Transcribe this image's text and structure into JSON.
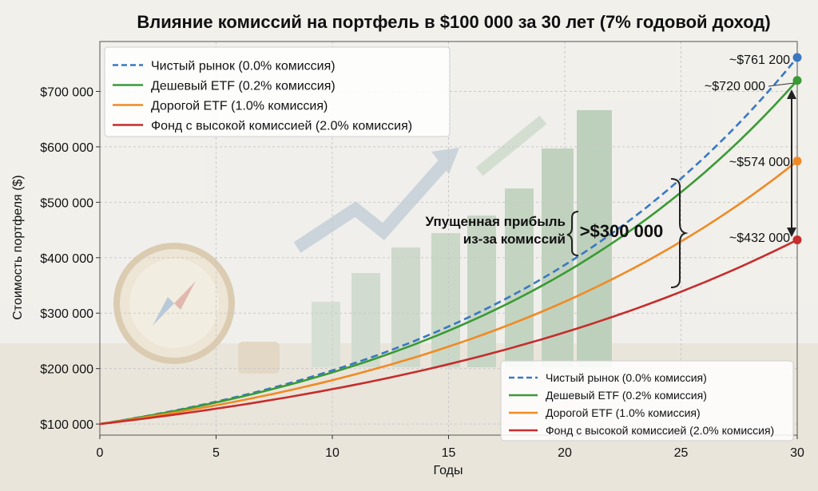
{
  "chart_data": {
    "type": "line",
    "title": "Влияние комиссий на портфель в $100 000 за 30 лет (7% годовой доход)",
    "xlabel": "Годы",
    "ylabel": "Стоимость портфеля ($)",
    "xlim": [
      0,
      30
    ],
    "ylim": [
      80000,
      790000
    ],
    "x_ticks": [
      0,
      5,
      10,
      15,
      20,
      25,
      30
    ],
    "y_ticks": [
      100000,
      200000,
      300000,
      400000,
      500000,
      600000,
      700000
    ],
    "y_tick_labels": [
      "$100 000",
      "$200 000",
      "$300 000",
      "$400 000",
      "$500 000",
      "$600 000",
      "$700 000"
    ],
    "grid": true,
    "legend_placement": [
      "top-left",
      "bottom-right"
    ],
    "series": [
      {
        "name": "Чистый рынок (0.0% комиссия)",
        "color": "#3a78c2",
        "dash": true,
        "rate": 0.07,
        "x": [
          0,
          5,
          10,
          15,
          20,
          25,
          30
        ],
        "values": [
          100000,
          140255,
          196715,
          275903,
          386968,
          542743,
          761226
        ],
        "end_label": "~$761 200"
      },
      {
        "name": "Дешевый ETF (0.2% комиссия)",
        "color": "#3a9a35",
        "dash": false,
        "rate": 0.068,
        "x": [
          0,
          5,
          10,
          15,
          20,
          25,
          30
        ],
        "values": [
          100000,
          138953,
          193079,
          268288,
          372794,
          518002,
          719771
        ],
        "end_label": "~$720 000"
      },
      {
        "name": "Дорогой ETF (1.0% комиссия)",
        "color": "#f08a24",
        "dash": false,
        "rate": 0.06,
        "x": [
          0,
          5,
          10,
          15,
          20,
          25,
          30
        ],
        "values": [
          100000,
          133823,
          179085,
          239656,
          320714,
          429187,
          574349
        ],
        "end_label": "~$574 000"
      },
      {
        "name": "Фонд с высокой комиссией (2.0% комиссия)",
        "color": "#c62d2d",
        "dash": false,
        "rate": 0.05,
        "x": [
          0,
          5,
          10,
          15,
          20,
          25,
          30
        ],
        "values": [
          100000,
          127628,
          162889,
          207893,
          265330,
          338635,
          432194
        ],
        "end_label": "~$432 000"
      }
    ],
    "annotation": {
      "text_line1": "Упущенная прибыль",
      "text_line2": "из-за комиссий",
      "amount": ">$300 000"
    }
  }
}
